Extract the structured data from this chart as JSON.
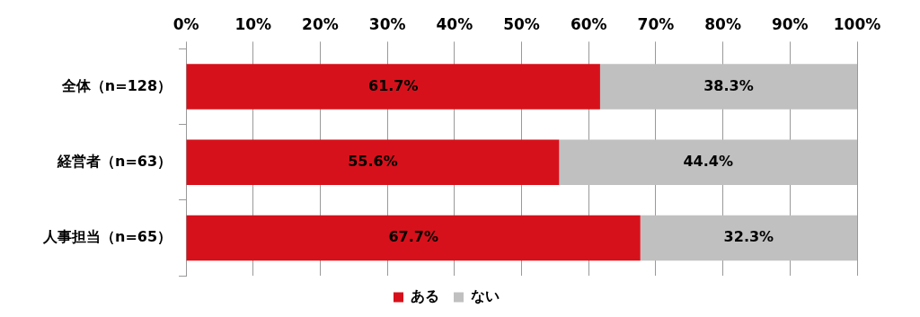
{
  "chart_data": {
    "type": "bar",
    "orientation": "horizontal",
    "stacked": true,
    "categories": [
      "全体（n=128）",
      "経営者（n=63）",
      "人事担当（n=65）"
    ],
    "series": [
      {
        "name": "ある",
        "color": "#d7111b",
        "values": [
          61.7,
          55.6,
          67.7
        ],
        "value_labels": [
          "61.7%",
          "55.6%",
          "67.7%"
        ]
      },
      {
        "name": "ない",
        "color": "#c0c0c0",
        "values": [
          38.3,
          44.4,
          32.3
        ],
        "value_labels": [
          "38.3%",
          "44.4%",
          "32.3%"
        ]
      }
    ],
    "xlim": [
      0,
      100
    ],
    "xticks": [
      {
        "value": 0,
        "label": "0%"
      },
      {
        "value": 10,
        "label": "10%"
      },
      {
        "value": 20,
        "label": "20%"
      },
      {
        "value": 30,
        "label": "30%"
      },
      {
        "value": 40,
        "label": "40%"
      },
      {
        "value": 50,
        "label": "50%"
      },
      {
        "value": 60,
        "label": "60%"
      },
      {
        "value": 70,
        "label": "70%"
      },
      {
        "value": 80,
        "label": "80%"
      },
      {
        "value": 90,
        "label": "90%"
      },
      {
        "value": 100,
        "label": "100%"
      }
    ],
    "grid": "x",
    "legend": "bottom"
  }
}
